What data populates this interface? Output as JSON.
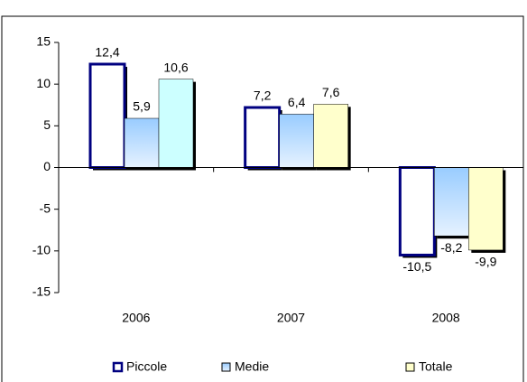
{
  "chart_data": {
    "type": "bar",
    "categories": [
      "2006",
      "2007",
      "2008"
    ],
    "series": [
      {
        "name": "Piccole",
        "color": "#ffffff",
        "values": [
          12.4,
          7.2,
          -10.5
        ],
        "value_labels": [
          "12,4",
          "7,2",
          "-10,5"
        ]
      },
      {
        "name": "Medie",
        "color": "#99ccff",
        "values": [
          5.9,
          6.4,
          -8.2
        ],
        "value_labels": [
          "5,9",
          "6,4",
          "-8,2"
        ]
      },
      {
        "name": "Totale",
        "color": "#ffffcc",
        "colors": [
          "#ccffff",
          "#ffffcc",
          "#ffffcc"
        ],
        "values": [
          10.6,
          7.6,
          -9.9
        ],
        "value_labels": [
          "10,6",
          "7,6",
          "-9,9"
        ]
      }
    ],
    "ylim": [
      -15,
      15
    ],
    "yticks": [
      -15,
      -10,
      -5,
      0,
      5,
      10,
      15
    ],
    "legend": "bottom"
  }
}
